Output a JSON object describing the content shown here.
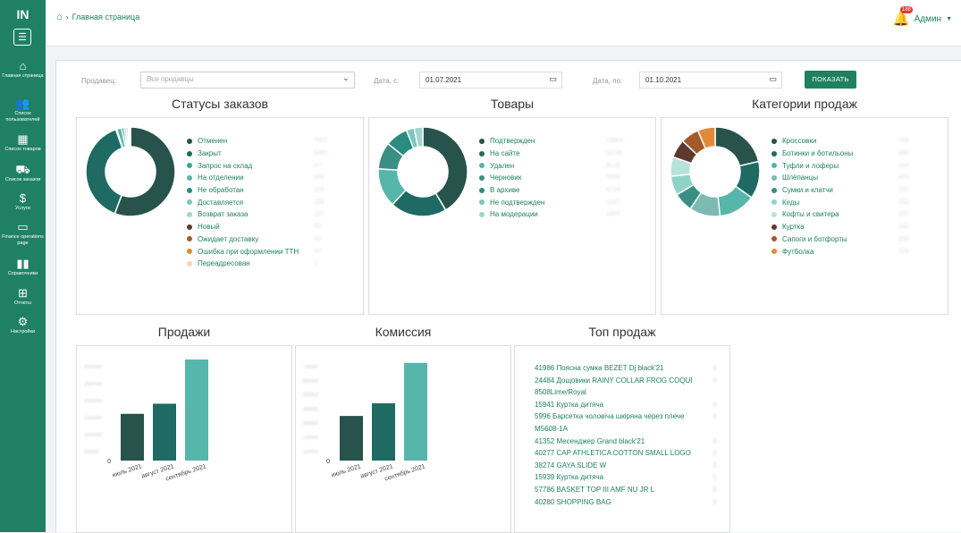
{
  "sidebar": {
    "logo": "IN",
    "items": [
      {
        "label": "Главная страница",
        "icon": "home-icon"
      },
      {
        "label": "Список пользователей",
        "icon": "users-icon"
      },
      {
        "label": "Список товаров",
        "icon": "boxes-icon"
      },
      {
        "label": "Список заказов",
        "icon": "basket-icon"
      },
      {
        "label": "Услуги",
        "icon": "dolly-icon"
      },
      {
        "label": "Finance operations page",
        "icon": "money-icon"
      },
      {
        "label": "Справочники",
        "icon": "book-icon"
      },
      {
        "label": "Отчеты",
        "icon": "table-icon"
      },
      {
        "label": "Настройки",
        "icon": "cogs-icon"
      }
    ]
  },
  "header": {
    "breadcrumb": "Главная страница",
    "notifications_count": "188",
    "user_name": "Админ"
  },
  "filters": {
    "seller_label": "Продавец:",
    "seller_placeholder": "Все продавцы",
    "date_from_label": "Дата, с:",
    "date_from": "01.07.2021",
    "date_to_label": "Дата, по:",
    "date_to": "01.10.2021",
    "show_button": "ПОКАЗАТЬ"
  },
  "colors": {
    "accent": "#1f8162"
  },
  "order_statuses": {
    "title": "Статусы заказов",
    "items": [
      {
        "label": "Отменен",
        "value": "7827",
        "color": "#27534c"
      },
      {
        "label": "Закрыт",
        "value": "5465",
        "color": "#1f6a62"
      },
      {
        "label": "Запрос на склад",
        "value": "47",
        "color": "#3aa698"
      },
      {
        "label": "На отделении",
        "value": "249",
        "color": "#56b6aa"
      },
      {
        "label": "Не обработан",
        "value": "118",
        "color": "#2a8c7e"
      },
      {
        "label": "Доставляется",
        "value": "108",
        "color": "#7cc7bd"
      },
      {
        "label": "Возврат заказа",
        "value": "101",
        "color": "#9fd6ce"
      },
      {
        "label": "Новый",
        "value": "60",
        "color": "#5c3a2e"
      },
      {
        "label": "Ожидает доставку",
        "value": "44",
        "color": "#a35a2a"
      },
      {
        "label": "Ошибка при оформлении ТТН",
        "value": "20",
        "color": "#e08b3a"
      },
      {
        "label": "Переадресован",
        "value": "2",
        "color": "#f3d9a8"
      }
    ]
  },
  "products": {
    "title": "Товары",
    "items": [
      {
        "label": "Подтвержден",
        "value": "23804",
        "color": "#27534c"
      },
      {
        "label": "На сайте",
        "value": "11745",
        "color": "#1f6a62"
      },
      {
        "label": "Удален",
        "value": "8128",
        "color": "#56b6aa"
      },
      {
        "label": "Черновик",
        "value": "5596",
        "color": "#3a8f84"
      },
      {
        "label": "В архиве",
        "value": "4724",
        "color": "#2a8c7e"
      },
      {
        "label": "Не подтвержден",
        "value": "1641",
        "color": "#7cc7bd"
      },
      {
        "label": "На модерации",
        "value": "1804",
        "color": "#9fd6ce"
      }
    ]
  },
  "sales_categories": {
    "title": "Категории продаж",
    "items": [
      {
        "label": "Кроссовки",
        "value": "768",
        "color": "#27534c"
      },
      {
        "label": "Ботинки и ботильоны",
        "value": "488",
        "color": "#1f6a62"
      },
      {
        "label": "Туфли и лоферы",
        "value": "484",
        "color": "#56b6aa"
      },
      {
        "label": "Шлёпанцы",
        "value": "402",
        "color": "#7cbab3"
      },
      {
        "label": "Сумки и клатчи",
        "value": "252",
        "color": "#3a8f84"
      },
      {
        "label": "Кеды",
        "value": "252",
        "color": "#8fd3c8"
      },
      {
        "label": "Кофты и свитера",
        "value": "252",
        "color": "#b5e3dc"
      },
      {
        "label": "Куртка",
        "value": "240",
        "color": "#5c3a2e"
      },
      {
        "label": "Сапоги и ботфорты",
        "value": "240",
        "color": "#a35a2a"
      },
      {
        "label": "Футболка",
        "value": "228",
        "color": "#e08b3a"
      }
    ]
  },
  "sales": {
    "title": "Продажи",
    "ticks": [
      "0",
      "300000",
      "250000",
      "200000",
      "150000",
      "100000",
      "50000"
    ]
  },
  "commission": {
    "title": "Комиссия",
    "ticks": [
      "0",
      "70000",
      "60000",
      "50000",
      "40000",
      "30000",
      "20000",
      "10000"
    ]
  },
  "top_sales": {
    "title": "Топ продаж",
    "items": [
      {
        "text": "41986 Поясна сумка BEZET Dj black'21",
        "qty": "8"
      },
      {
        "text": "24484 Дощовики RAINY COLLAR FROG COQUI",
        "qty": "8"
      },
      {
        "text": "8508Lime/Royal",
        "qty": ""
      },
      {
        "text": "15941 Куртка дитяча",
        "qty": "8"
      },
      {
        "text": "5996 Барсетка чоловіча шкіряна через плече",
        "qty": "8"
      },
      {
        "text": "M5608-1A",
        "qty": ""
      },
      {
        "text": "41352 Месенджер Grand black'21",
        "qty": "8"
      },
      {
        "text": "40277 CAP ATHLETICA COTTON SMALL LOGO",
        "qty": "8"
      },
      {
        "text": "38274 GAYA SLIDE W",
        "qty": "8"
      },
      {
        "text": "15939 Куртка дитяча",
        "qty": "5"
      },
      {
        "text": "57786 BASKET TOP III AMF NU JR L",
        "qty": "8"
      },
      {
        "text": "40280 SHOPPING BAG",
        "qty": "8"
      }
    ]
  },
  "chart_data": [
    {
      "type": "pie",
      "title": "Статусы заказов",
      "categories": [
        "Отменен",
        "Закрыт",
        "Запрос на склад",
        "На отделении",
        "Не обработан",
        "Доставляется",
        "Возврат заказа",
        "Новый",
        "Ожидает доставку",
        "Ошибка при оформлении ТТН",
        "Переадресован"
      ],
      "values": [
        7827,
        5465,
        47,
        249,
        118,
        108,
        101,
        60,
        44,
        20,
        2
      ]
    },
    {
      "type": "pie",
      "title": "Товары",
      "categories": [
        "Подтвержден",
        "На сайте",
        "Удален",
        "Черновик",
        "В архиве",
        "Не подтвержден",
        "На модерации"
      ],
      "values": [
        23804,
        11745,
        8128,
        5596,
        4724,
        1641,
        1804
      ]
    },
    {
      "type": "pie",
      "title": "Категории продаж",
      "categories": [
        "Кроссовки",
        "Ботинки и ботильоны",
        "Туфли и лоферы",
        "Шлёпанцы",
        "Сумки и клатчи",
        "Кеды",
        "Кофты и свитера",
        "Куртка",
        "Сапоги и ботфорты",
        "Футболка"
      ],
      "values": [
        768,
        488,
        484,
        402,
        252,
        252,
        252,
        240,
        240,
        228
      ]
    },
    {
      "type": "bar",
      "title": "Продажи",
      "categories": [
        "июль 2021",
        "август 2021",
        "сентябрь 2021"
      ],
      "values": [
        148000,
        180000,
        320000
      ],
      "colors": [
        "#27534c",
        "#1f6a62",
        "#56b6aa"
      ],
      "ylim": [
        0,
        320000
      ]
    },
    {
      "type": "bar",
      "title": "Комиссия",
      "categories": [
        "июль 2021",
        "август 2021",
        "сентябрь 2021"
      ],
      "values": [
        26500,
        34000,
        58000
      ],
      "colors": [
        "#27534c",
        "#1f6a62",
        "#56b6aa"
      ],
      "ylim": [
        0,
        60000
      ]
    }
  ]
}
